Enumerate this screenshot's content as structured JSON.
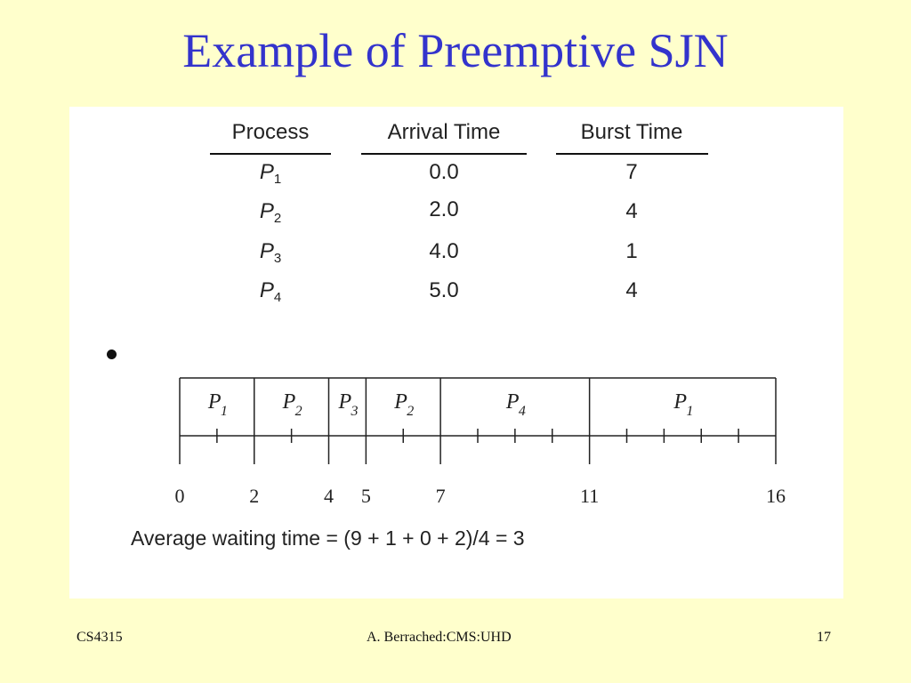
{
  "slide": {
    "title": "Example of Preemptive SJN"
  },
  "table": {
    "headers": [
      "Process",
      "Arrival Time",
      "Burst Time"
    ],
    "rows": [
      {
        "process": "P",
        "sub": "1",
        "arrival": "0.0",
        "burst": "7"
      },
      {
        "process": "P",
        "sub": "2",
        "arrival": "2.0",
        "burst": "4"
      },
      {
        "process": "P",
        "sub": "3",
        "arrival": "4.0",
        "burst": "1"
      },
      {
        "process": "P",
        "sub": "4",
        "arrival": "5.0",
        "burst": "4"
      }
    ]
  },
  "gantt": {
    "timeline_max": 16,
    "segments": [
      {
        "label": "P",
        "sub": "1",
        "start": 0,
        "end": 2
      },
      {
        "label": "P",
        "sub": "2",
        "start": 2,
        "end": 4
      },
      {
        "label": "P",
        "sub": "3",
        "start": 4,
        "end": 5
      },
      {
        "label": "P",
        "sub": "2",
        "start": 5,
        "end": 7
      },
      {
        "label": "P",
        "sub": "4",
        "start": 7,
        "end": 11
      },
      {
        "label": "P",
        "sub": "1",
        "start": 11,
        "end": 16
      }
    ],
    "boundary_labels": [
      "0",
      "2",
      "4",
      "5",
      "7",
      "11",
      "16"
    ]
  },
  "summary": {
    "average_waiting_time": "Average waiting time = (9 + 1 + 0 + 2)/4 = 3"
  },
  "footer": {
    "course": "CS4315",
    "author": "A. Berrached:CMS:UHD",
    "page": "17"
  }
}
